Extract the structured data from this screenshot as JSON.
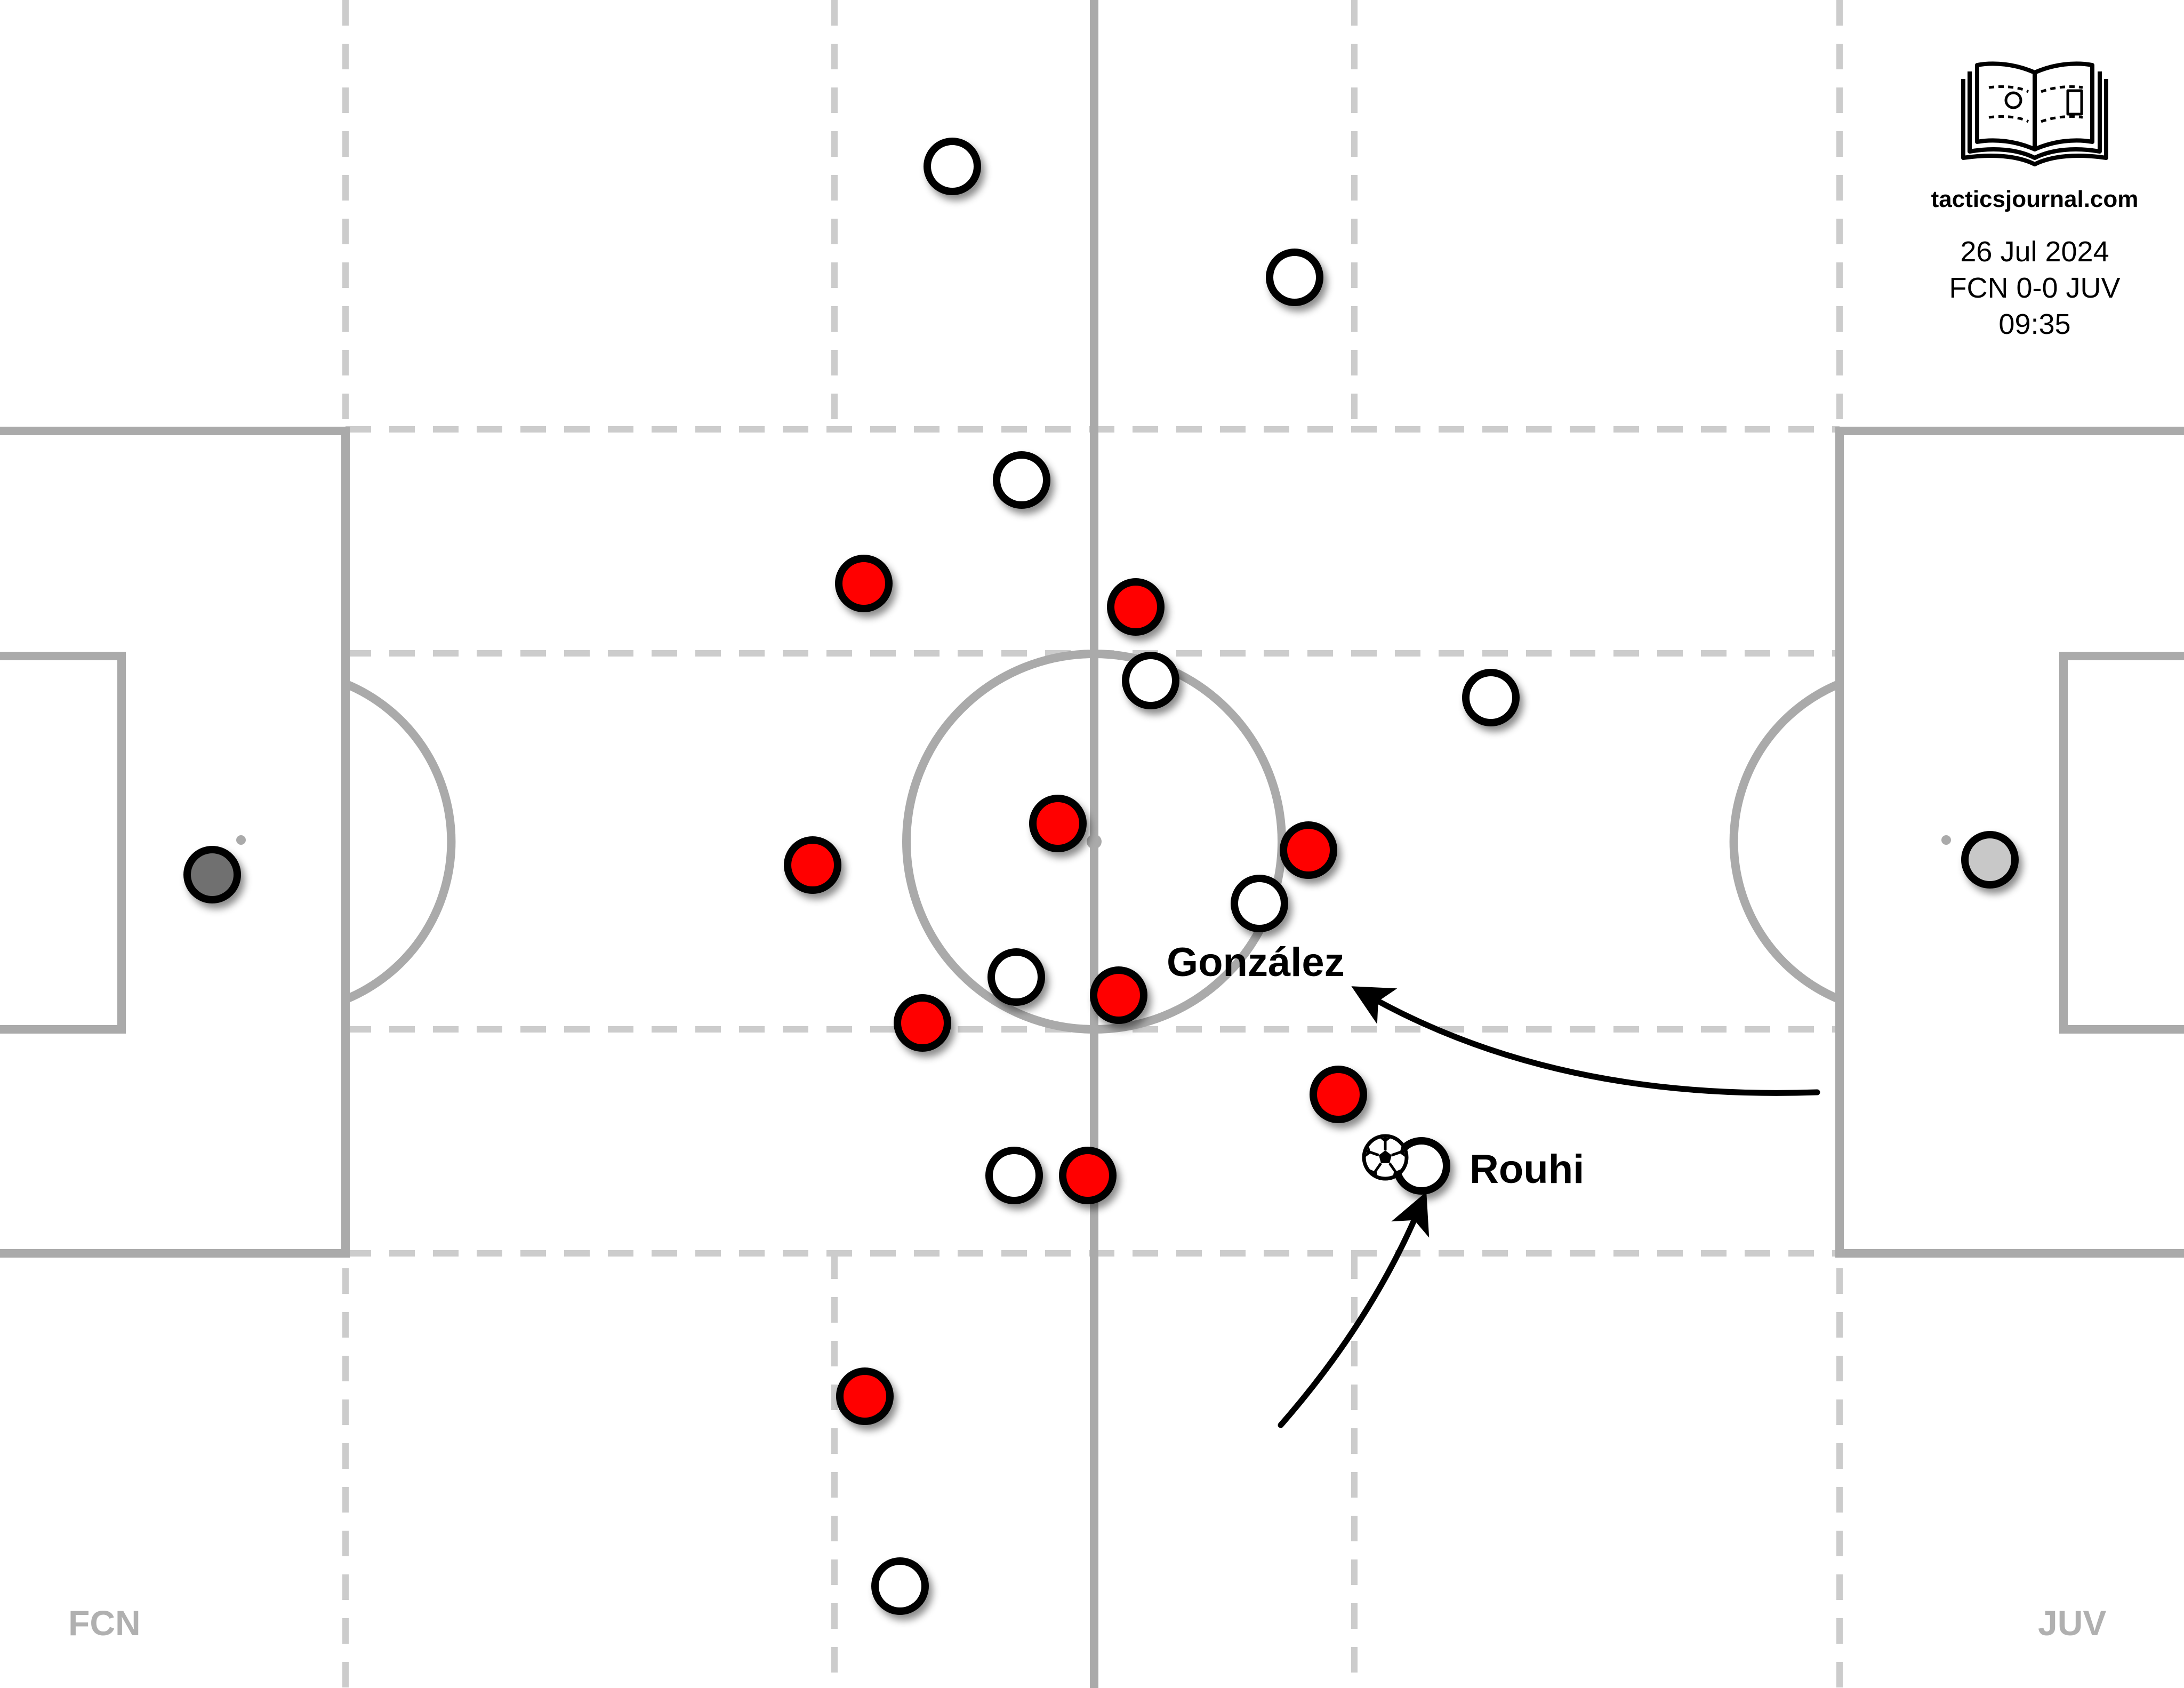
{
  "branding": {
    "site": "tacticsjournal.com",
    "logo_icon": "book-pitch-icon"
  },
  "match_info": {
    "date": "26 Jul 2024",
    "score": "FCN 0-0 JUV",
    "time": "09:35"
  },
  "teams": {
    "left": "FCN",
    "right": "JUV"
  },
  "colors": {
    "home": "#ff0000",
    "away": "#ffffff",
    "keeper_left": "#707070",
    "keeper_right": "#c8c8c8",
    "pitch_line": "#aaaaaa",
    "zone_line": "#cccccc"
  },
  "labels": {
    "gonzalez": "González",
    "rouhi": "Rouhi"
  },
  "ball_icon": "soccer-ball-icon",
  "arrow_icon": "movement-arrow-icon"
}
